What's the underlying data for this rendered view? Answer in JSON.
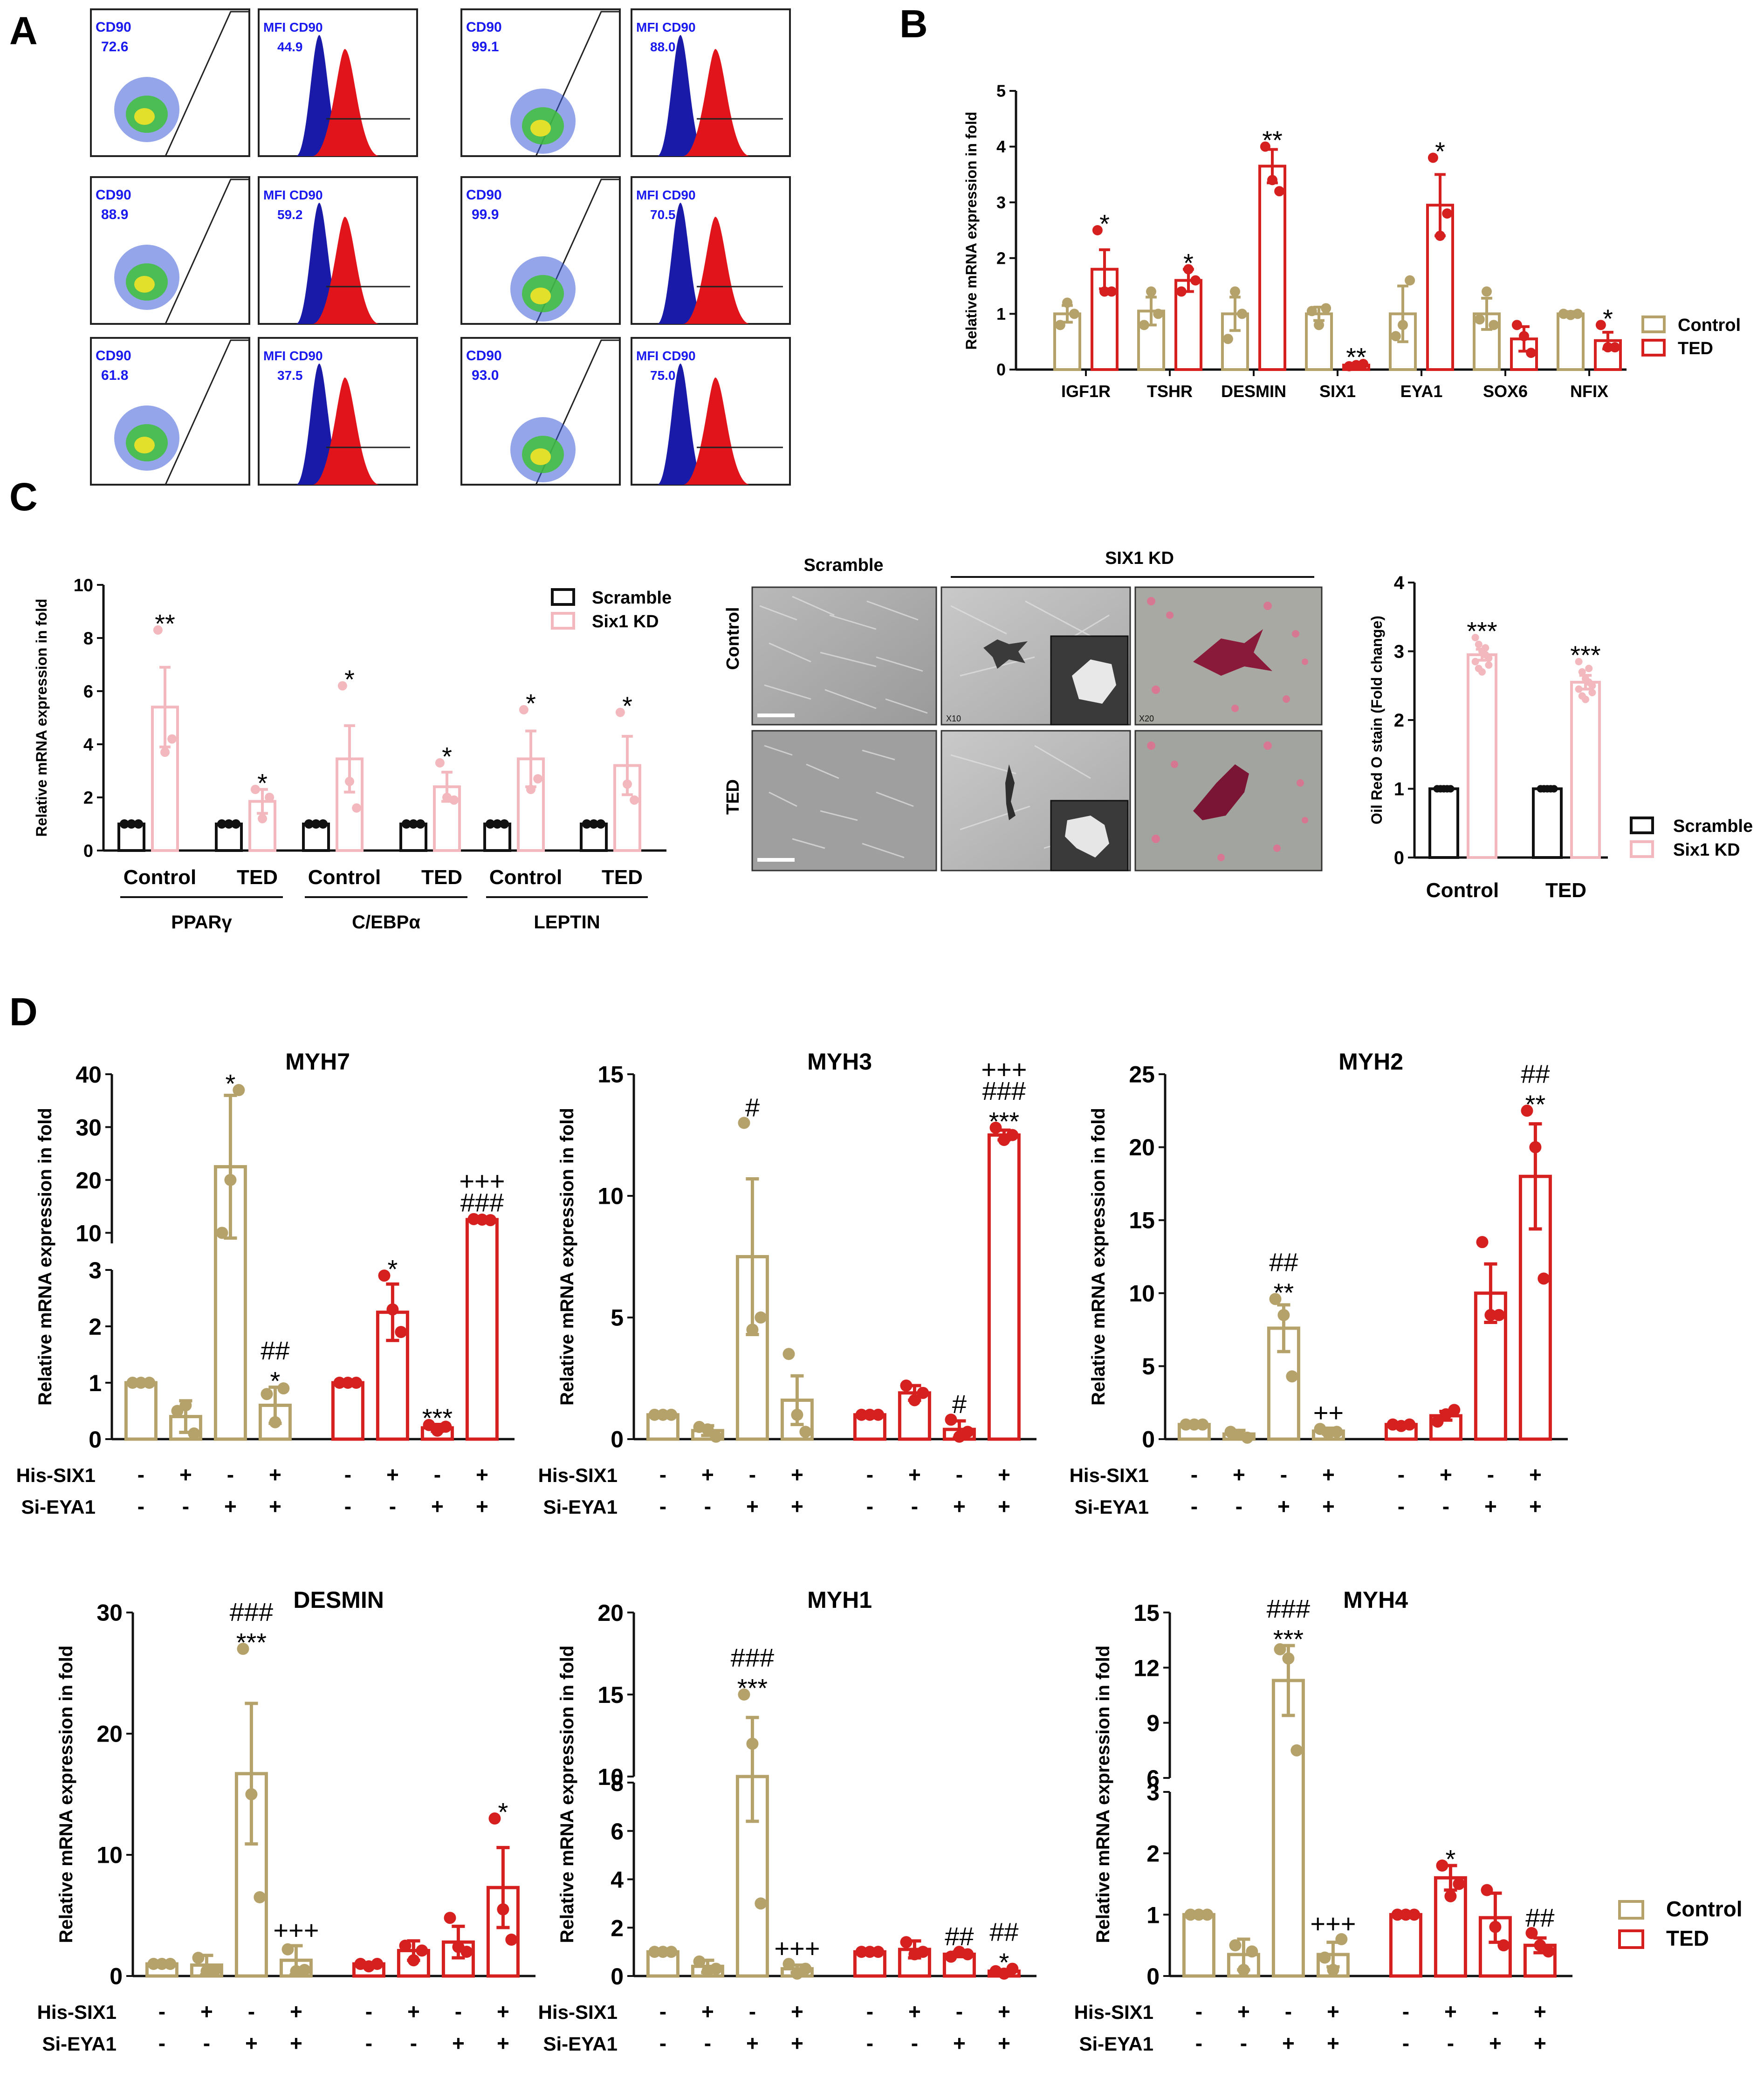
{
  "colors": {
    "control": "#b5a26b",
    "ted": "#d62020",
    "scramble": "#111111",
    "six1kd": "#f3b8bd",
    "flow_blue": "#1a1aa8",
    "flow_red": "#e0141a",
    "flow_text": "#1a1aee"
  },
  "panel_letters": [
    "A",
    "B",
    "C",
    "D"
  ],
  "panelA": {
    "gate_label": "CD90",
    "mfi_label": "MFI CD90",
    "rows": [
      {
        "pct1": "72.6",
        "mfi1": "44.9",
        "pct2": "99.1",
        "mfi2": "88.0"
      },
      {
        "pct1": "88.9",
        "mfi1": "59.2",
        "pct2": "99.9",
        "mfi2": "70.5"
      },
      {
        "pct1": "61.8",
        "mfi1": "37.5",
        "pct2": "93.0",
        "mfi2": "75.0"
      }
    ]
  },
  "panelC": {
    "micro_header_scramble": "Scramble",
    "micro_header_kd": "SIX1 KD",
    "micro_row_control": "Control",
    "micro_row_ted": "TED",
    "mag_x10": "X10",
    "mag_x20": "X20"
  },
  "legends": {
    "B": [
      "Control",
      "TED"
    ],
    "C": [
      "Scramble",
      "Six1 KD"
    ],
    "D": [
      "Control",
      "TED"
    ]
  },
  "treatment_rows": {
    "his_label": "His-SIX1",
    "si_label": "Si-EYA1",
    "his": [
      "-",
      "+",
      "-",
      "+",
      "-",
      "+",
      "-",
      "+"
    ],
    "si": [
      "-",
      "-",
      "+",
      "+",
      "-",
      "-",
      "+",
      "+"
    ]
  },
  "chart_data": [
    {
      "id": "B",
      "type": "bar",
      "title": "",
      "ylabel": "Relative mRNA expression in fold",
      "ylim": [
        0,
        5
      ],
      "yticks": [
        0,
        1,
        2,
        3,
        4,
        5
      ],
      "categories": [
        "IGF1R",
        "TSHR",
        "DESMIN",
        "SIX1",
        "EYA1",
        "SOX6",
        "NFIX"
      ],
      "series": [
        {
          "name": "Control",
          "values": [
            1.0,
            1.05,
            1.0,
            1.0,
            1.0,
            1.0,
            1.0
          ],
          "errors": [
            0.15,
            0.25,
            0.3,
            0.12,
            0.5,
            0.28,
            0.04
          ],
          "points": [
            [
              0.8,
              1.2,
              1.0
            ],
            [
              0.8,
              1.4,
              1.0
            ],
            [
              0.55,
              1.4,
              1.0
            ],
            [
              1.05,
              0.8,
              1.1
            ],
            [
              0.6,
              0.8,
              1.6
            ],
            [
              0.9,
              1.4,
              0.8
            ],
            [
              1.0,
              0.98,
              1.0
            ]
          ],
          "annotations": [
            "",
            "",
            "",
            "",
            "",
            "",
            ""
          ]
        },
        {
          "name": "TED",
          "values": [
            1.8,
            1.6,
            3.65,
            0.08,
            2.95,
            0.55,
            0.52
          ],
          "errors": [
            0.35,
            0.2,
            0.3,
            0.03,
            0.55,
            0.22,
            0.15
          ],
          "points": [
            [
              2.5,
              1.4,
              1.4
            ],
            [
              1.4,
              1.8,
              1.6
            ],
            [
              4.0,
              3.4,
              3.2
            ],
            [
              0.06,
              0.08,
              0.1
            ],
            [
              3.8,
              2.4,
              2.8
            ],
            [
              0.8,
              0.6,
              0.3
            ],
            [
              0.8,
              0.4,
              0.4
            ]
          ],
          "annotations": [
            "*",
            "*",
            "**",
            "**",
            "*",
            "",
            "*"
          ]
        }
      ]
    },
    {
      "id": "C_qpcr",
      "type": "bar",
      "title": "",
      "ylabel": "Relative mRNA expression in fold",
      "ylim": [
        0,
        10
      ],
      "yticks": [
        0,
        2,
        4,
        6,
        8,
        10
      ],
      "groups": [
        "PPARγ",
        "C/EBPα",
        "LEPTIN"
      ],
      "categories": [
        "Control",
        "TED",
        "Control",
        "TED",
        "Control",
        "TED"
      ],
      "series": [
        {
          "name": "Scramble",
          "values": [
            1,
            1,
            1,
            1,
            1,
            1
          ],
          "errors": [
            0,
            0,
            0,
            0,
            0,
            0
          ],
          "points": [
            [
              1,
              1,
              1
            ],
            [
              1,
              1,
              1
            ],
            [
              1,
              1,
              1
            ],
            [
              1,
              1,
              1
            ],
            [
              1,
              1,
              1
            ],
            [
              1,
              1,
              1
            ]
          ],
          "annotations": [
            "",
            "",
            "",
            "",
            "",
            ""
          ]
        },
        {
          "name": "Six1 KD",
          "values": [
            5.4,
            1.85,
            3.45,
            2.4,
            3.45,
            3.2
          ],
          "errors": [
            1.5,
            0.45,
            1.25,
            0.55,
            1.05,
            1.1
          ],
          "points": [
            [
              8.3,
              3.7,
              4.2
            ],
            [
              2.3,
              1.2,
              2.0
            ],
            [
              6.2,
              2.6,
              1.6
            ],
            [
              3.3,
              2.0,
              1.9
            ],
            [
              5.3,
              2.3,
              2.7
            ],
            [
              5.2,
              2.5,
              1.9
            ]
          ],
          "annotations": [
            "**",
            "*",
            "*",
            "*",
            "*",
            "*"
          ]
        }
      ]
    },
    {
      "id": "C_oil",
      "type": "bar",
      "title": "",
      "ylabel": "Oil Red O stain (Fold change)",
      "ylim": [
        0,
        4
      ],
      "yticks": [
        0,
        1,
        2,
        3,
        4
      ],
      "categories": [
        "Control",
        "TED"
      ],
      "series": [
        {
          "name": "Scramble",
          "values": [
            1.0,
            1.0
          ],
          "errors": [
            0.02,
            0.02
          ],
          "points": [
            [
              1,
              1,
              1,
              1,
              1,
              1,
              1,
              1,
              1,
              1
            ],
            [
              1,
              1,
              1,
              1,
              1,
              1,
              1,
              1,
              1,
              1
            ]
          ],
          "annotations": [
            "",
            ""
          ]
        },
        {
          "name": "Six1 KD",
          "values": [
            2.95,
            2.55
          ],
          "errors": [
            0.08,
            0.1
          ],
          "points": [
            [
              3.2,
              3.1,
              3.0,
              2.95,
              2.9,
              2.85,
              2.75,
              2.7,
              3.05,
              2.8
            ],
            [
              2.85,
              2.7,
              2.6,
              2.55,
              2.5,
              2.45,
              2.35,
              2.3,
              2.75,
              2.4
            ]
          ],
          "annotations": [
            "***",
            "***"
          ]
        }
      ]
    },
    {
      "id": "MYH7",
      "type": "bar",
      "title": "MYH7",
      "ylabel": "Relative mRNA expression in fold",
      "ylim": [
        0,
        40
      ],
      "broken_axis": {
        "lower": [
          0,
          3
        ],
        "upper": [
          8,
          40
        ]
      },
      "yticks_lower": [
        0,
        1,
        2,
        3
      ],
      "yticks_upper": [
        10,
        20,
        30,
        40
      ],
      "groups": [
        "Control",
        "TED"
      ],
      "values": [
        1.0,
        0.4,
        22.5,
        0.6,
        1.0,
        2.25,
        0.2,
        12.5
      ],
      "errors": [
        0.02,
        0.28,
        13.5,
        0.32,
        0.02,
        0.5,
        0.06,
        0.3
      ],
      "points": [
        [
          1,
          1,
          1
        ],
        [
          0.5,
          0.6,
          0.1
        ],
        [
          10,
          20,
          37
        ],
        [
          0.8,
          0.3,
          0.9
        ],
        [
          1,
          1,
          1
        ],
        [
          2.9,
          2.3,
          1.9
        ],
        [
          0.25,
          0.15,
          0.22
        ],
        [
          12.6,
          12.5,
          12.4
        ]
      ],
      "annotations": [
        "",
        "",
        "*",
        "##\n*",
        "",
        "*",
        "***",
        "+++\n###"
      ]
    },
    {
      "id": "MYH3",
      "type": "bar",
      "title": "MYH3",
      "ylabel": "Relative mRNA expression in fold",
      "ylim": [
        0,
        15
      ],
      "yticks": [
        0,
        5,
        10,
        15
      ],
      "groups": [
        "Control",
        "TED"
      ],
      "values": [
        1.0,
        0.35,
        7.5,
        1.6,
        1.0,
        1.9,
        0.4,
        12.5
      ],
      "errors": [
        0.02,
        0.2,
        3.2,
        1.0,
        0.02,
        0.3,
        0.35,
        0.2
      ],
      "points": [
        [
          1,
          1,
          1
        ],
        [
          0.5,
          0.4,
          0.1
        ],
        [
          13.0,
          4.5,
          5.0
        ],
        [
          3.5,
          1.0,
          0.3
        ],
        [
          1,
          1,
          1
        ],
        [
          2.2,
          1.6,
          1.9
        ],
        [
          0.8,
          0.1,
          0.3
        ],
        [
          12.8,
          12.3,
          12.5
        ]
      ],
      "annotations": [
        "",
        "",
        "#",
        "",
        "",
        "",
        "#",
        "+++\n###\n***"
      ]
    },
    {
      "id": "MYH2",
      "type": "bar",
      "title": "MYH2",
      "ylabel": "Relative mRNA expression in fold",
      "ylim": [
        0,
        25
      ],
      "yticks": [
        0,
        5,
        10,
        15,
        20,
        25
      ],
      "groups": [
        "Control",
        "TED"
      ],
      "values": [
        1.0,
        0.35,
        7.6,
        0.55,
        1.0,
        1.6,
        10.0,
        18.0
      ],
      "errors": [
        0.02,
        0.25,
        1.6,
        0.2,
        0.05,
        0.3,
        2.0,
        3.6
      ],
      "points": [
        [
          1,
          1,
          1
        ],
        [
          0.5,
          0.3,
          0.1
        ],
        [
          9.6,
          8.5,
          4.3
        ],
        [
          0.7,
          0.4,
          0.5
        ],
        [
          1,
          0.9,
          1
        ],
        [
          1.2,
          1.7,
          2.0
        ],
        [
          13.5,
          8.5,
          8.5
        ],
        [
          22.5,
          20.0,
          11.0
        ]
      ],
      "annotations": [
        "",
        "",
        "##\n**",
        "++",
        "",
        "",
        "",
        "##\n**"
      ]
    },
    {
      "id": "DESMIN",
      "type": "bar",
      "title": "DESMIN",
      "ylabel": "Relative mRNA expression in fold",
      "ylim": [
        0,
        30
      ],
      "yticks": [
        0,
        10,
        20,
        30
      ],
      "groups": [
        "Control",
        "TED"
      ],
      "values": [
        1.0,
        0.9,
        16.7,
        1.3,
        1.0,
        2.1,
        2.8,
        7.3
      ],
      "errors": [
        0.05,
        0.8,
        5.8,
        1.2,
        0.1,
        0.8,
        1.3,
        3.3
      ],
      "points": [
        [
          1,
          1,
          1
        ],
        [
          1.5,
          0.4,
          0.5
        ],
        [
          27.0,
          15.0,
          6.5
        ],
        [
          2.2,
          0.4,
          0.5
        ],
        [
          1.0,
          0.8,
          1.0
        ],
        [
          2.5,
          1.3,
          2.1
        ],
        [
          4.8,
          2.4,
          2.0
        ],
        [
          13.0,
          5.5,
          3.0
        ]
      ],
      "annotations": [
        "",
        "",
        "###\n***",
        "+++",
        "",
        "",
        "",
        "*"
      ]
    },
    {
      "id": "MYH1",
      "type": "bar",
      "title": "MYH1",
      "ylabel": "Relative mRNA expression in fold",
      "ylim": [
        0,
        20
      ],
      "broken_axis": {
        "lower": [
          0,
          8
        ],
        "upper": [
          10,
          20
        ]
      },
      "yticks_lower": [
        0,
        2,
        4,
        6,
        8
      ],
      "yticks_upper": [
        10,
        15,
        20
      ],
      "groups": [
        "Control",
        "TED"
      ],
      "values": [
        1.0,
        0.4,
        10.0,
        0.3,
        1.0,
        1.1,
        0.9,
        0.2
      ],
      "errors": [
        0.02,
        0.25,
        3.6,
        0.15,
        0.05,
        0.35,
        0.1,
        0.05
      ],
      "points": [
        [
          1,
          1,
          1
        ],
        [
          0.6,
          0.2,
          0.3
        ],
        [
          15.0,
          12.0,
          3.0
        ],
        [
          0.5,
          0.1,
          0.3
        ],
        [
          1,
          1,
          1
        ],
        [
          1.4,
          0.9,
          1.0
        ],
        [
          0.8,
          1.0,
          0.9
        ],
        [
          0.2,
          0.1,
          0.3
        ]
      ],
      "annotations": [
        "",
        "",
        "###\n***",
        "+++",
        "",
        "",
        "##",
        "##\n*"
      ]
    },
    {
      "id": "MYH4",
      "type": "bar",
      "title": "MYH4",
      "ylabel": "Relative mRNA expression in fold",
      "ylim": [
        0,
        15
      ],
      "broken_axis": {
        "lower": [
          0,
          3
        ],
        "upper": [
          6,
          15
        ]
      },
      "yticks_lower": [
        0,
        1,
        2,
        3
      ],
      "yticks_upper": [
        6,
        9,
        12,
        15
      ],
      "groups": [
        "Control",
        "TED"
      ],
      "values": [
        1.0,
        0.35,
        11.3,
        0.35,
        1.0,
        1.6,
        0.95,
        0.5
      ],
      "errors": [
        0.02,
        0.25,
        1.9,
        0.2,
        0.02,
        0.2,
        0.4,
        0.12
      ],
      "points": [
        [
          1,
          1,
          1
        ],
        [
          0.5,
          0.1,
          0.4
        ],
        [
          13.0,
          12.5,
          7.5
        ],
        [
          0.3,
          0.1,
          0.6
        ],
        [
          1,
          1,
          1
        ],
        [
          1.8,
          1.3,
          1.5
        ],
        [
          1.4,
          0.8,
          0.5
        ],
        [
          0.7,
          0.5,
          0.4
        ]
      ],
      "annotations": [
        "",
        "",
        "###\n***",
        "+++",
        "",
        "*",
        "",
        "##"
      ]
    }
  ]
}
